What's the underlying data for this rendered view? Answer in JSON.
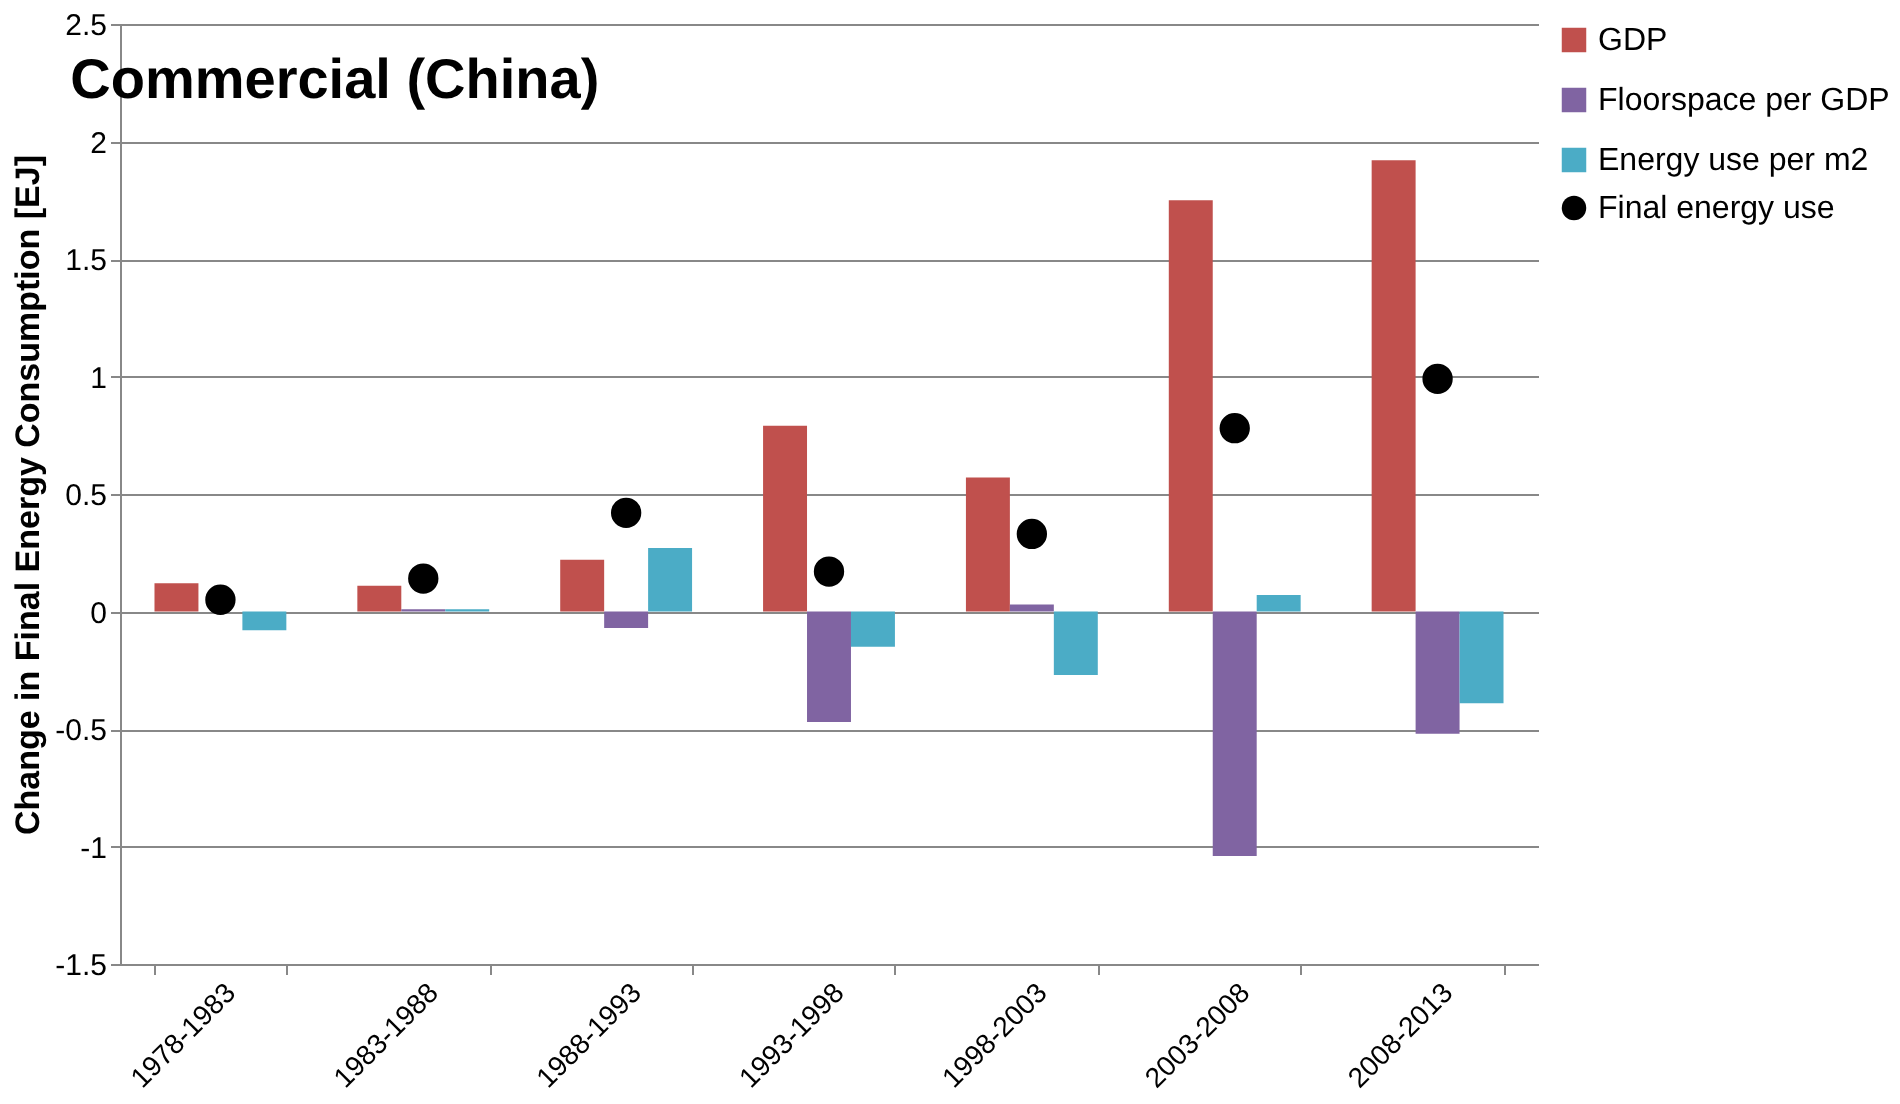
{
  "chart_data": {
    "type": "bar",
    "title": "Commercial  (China)",
    "ylabel": "Change in Final Energy Consumption [EJ]",
    "categories": [
      "1978-1983",
      "1983-1988",
      "1988-1993",
      "1993-1998",
      "1998-2003",
      "2003-2008",
      "2008-2013"
    ],
    "series": [
      {
        "name": "GDP",
        "color": "#c0504d",
        "values": [
          0.12,
          0.11,
          0.22,
          0.79,
          0.57,
          1.75,
          1.92
        ]
      },
      {
        "name": "Floorspace per GDP",
        "color": "#8064a2",
        "values": [
          0.0,
          0.01,
          -0.07,
          -0.47,
          0.03,
          -1.04,
          -0.52
        ]
      },
      {
        "name": "Energy use per m2",
        "color": "#4bacc6",
        "values": [
          -0.08,
          0.01,
          0.27,
          -0.15,
          -0.27,
          0.07,
          -0.39
        ]
      },
      {
        "name": "Final energy use",
        "type": "scatter",
        "marker": "circle",
        "color": "#000000",
        "x": [
          "1978-1983",
          "1983-1988",
          "1988-1993",
          "1993-1998",
          "1998-2003",
          "2003-2008",
          "2008-2013"
        ],
        "values": [
          0.05,
          0.14,
          0.42,
          0.17,
          0.33,
          0.78,
          0.99
        ]
      }
    ],
    "ylim": [
      -1.5,
      2.5
    ],
    "yticks": [
      -1.5,
      -1,
      -0.5,
      0,
      0.5,
      1,
      1.5,
      2,
      2.5
    ],
    "grid": "y",
    "legend": "right"
  }
}
